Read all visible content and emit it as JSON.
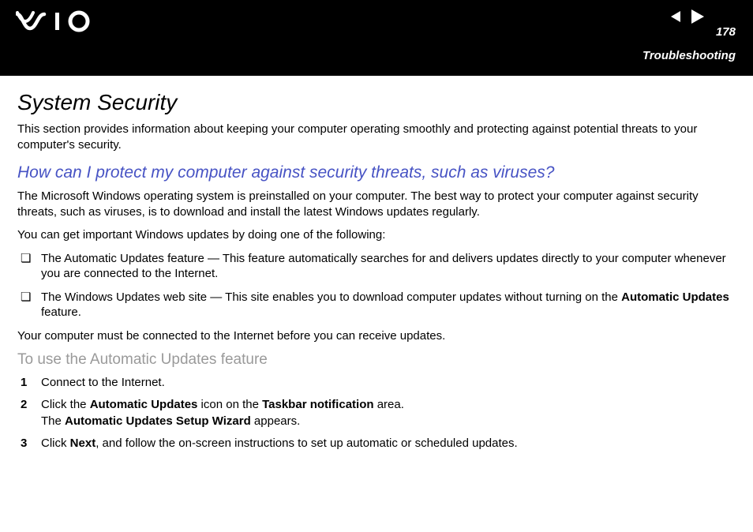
{
  "header": {
    "page_number": "178",
    "section": "Troubleshooting",
    "colors": {
      "bg": "#000000",
      "fg": "#ffffff"
    }
  },
  "content": {
    "title": "System Security",
    "intro": "This section provides information about keeping your computer operating smoothly and protecting against potential threats to your computer's security.",
    "question": "How can I protect my computer against security threats, such as viruses?",
    "question_color": "#4753c4",
    "para1": "The Microsoft Windows operating system is preinstalled on your computer. The best way to protect your computer against security threats, such as viruses, is to download and install the latest Windows updates regularly.",
    "para2": "You can get important Windows updates by doing one of the following:",
    "bullets": [
      {
        "text": "The Automatic Updates feature — This feature automatically searches for and delivers updates directly to your computer whenever you are connected to the Internet."
      },
      {
        "prefix": "The Windows Updates web site — This site enables you to download computer updates without turning on the ",
        "bold1": "Automatic Updates",
        "suffix": " feature."
      }
    ],
    "para3": "Your computer must be connected to the Internet before you can receive updates.",
    "subhead": "To use the Automatic Updates feature",
    "subhead_color": "#9a9a9a",
    "steps": [
      {
        "n": "1",
        "html": "Connect to the Internet."
      },
      {
        "n": "2",
        "html": "Click the <b>Automatic Updates</b> icon on the <b>Taskbar notification</b> area.<br>The <b>Automatic Updates Setup Wizard</b> appears."
      },
      {
        "n": "3",
        "html": "Click <b>Next</b>, and follow the on-screen instructions to set up automatic or scheduled updates."
      }
    ]
  }
}
